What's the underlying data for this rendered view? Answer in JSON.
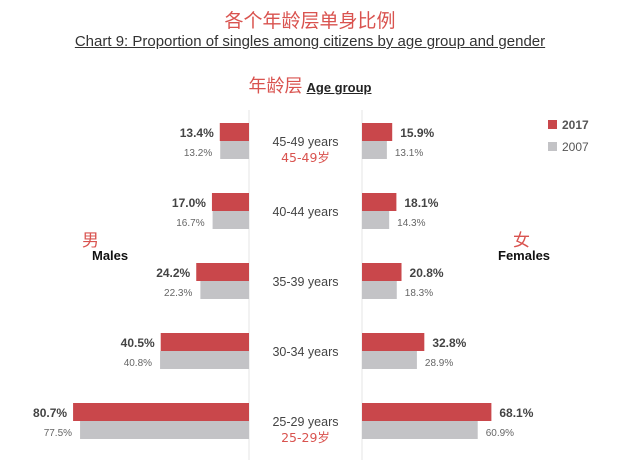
{
  "chart_data": {
    "type": "bar",
    "title_cn": "各个年龄层单身比例",
    "title": "Chart 9: Proportion of singles among citizens by age group and gender",
    "axis_title_cn": "年龄层",
    "axis_title": "Age group",
    "categories": [
      "45-49 years",
      "40-44 years",
      "35-39 years",
      "30-34 years",
      "25-29 years"
    ],
    "categories_cn": {
      "0": "45-49岁",
      "4": "25-29岁"
    },
    "males_label_cn": "男",
    "males_label": "Males",
    "females_label_cn": "女",
    "females_label": "Females",
    "legend": [
      {
        "name": "2017",
        "color": "#c9474b"
      },
      {
        "name": "2007",
        "color": "#c3c3c6"
      }
    ],
    "legend_position": "right",
    "series": {
      "males": [
        {
          "name": "2017",
          "values": [
            13.4,
            17.0,
            24.2,
            40.5,
            80.7
          ],
          "labels": [
            "13.4%",
            "17.0%",
            "24.2%",
            "40.5%",
            "80.7%"
          ]
        },
        {
          "name": "2007",
          "values": [
            13.2,
            16.7,
            22.3,
            40.8,
            77.5
          ],
          "labels": [
            "13.2%",
            "16.7%",
            "22.3%",
            "40.8%",
            "77.5%"
          ]
        }
      ],
      "females": [
        {
          "name": "2017",
          "values": [
            15.9,
            18.1,
            20.8,
            32.8,
            68.1
          ],
          "labels": [
            "15.9%",
            "18.1%",
            "20.8%",
            "32.8%",
            "68.1%"
          ]
        },
        {
          "name": "2007",
          "values": [
            13.1,
            14.3,
            18.3,
            28.9,
            60.9
          ],
          "labels": [
            "13.1%",
            "14.3%",
            "18.3%",
            "28.9%",
            "60.9%"
          ]
        }
      ]
    }
  }
}
